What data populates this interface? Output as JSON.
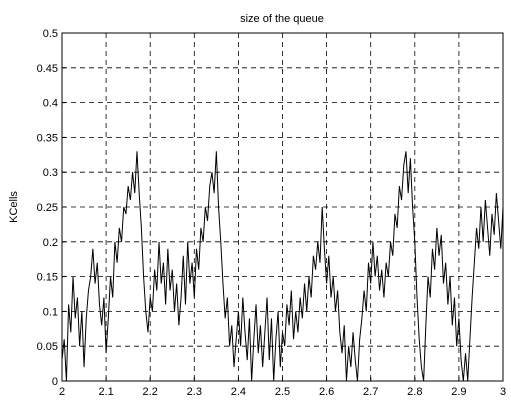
{
  "chart_data": {
    "type": "line",
    "title": "size of the queue",
    "ylabel": "KCells",
    "xlim": [
      2,
      3
    ],
    "ylim": [
      0,
      0.5
    ],
    "xticks": [
      2,
      2.1,
      2.2,
      2.3,
      2.4,
      2.5,
      2.6,
      2.7,
      2.8,
      2.9,
      3
    ],
    "yticks": [
      0,
      0.05,
      0.1,
      0.15,
      0.2,
      0.25,
      0.3,
      0.35,
      0.4,
      0.45,
      0.5
    ],
    "grid": true,
    "x": [
      2,
      2.005,
      2.01,
      2.015,
      2.02,
      2.025,
      2.03,
      2.035,
      2.04,
      2.045,
      2.05,
      2.055,
      2.06,
      2.065,
      2.07,
      2.075,
      2.08,
      2.085,
      2.09,
      2.095,
      2.1,
      2.105,
      2.11,
      2.115,
      2.12,
      2.125,
      2.13,
      2.135,
      2.14,
      2.145,
      2.15,
      2.155,
      2.16,
      2.165,
      2.17,
      2.175,
      2.18,
      2.185,
      2.19,
      2.195,
      2.2,
      2.205,
      2.21,
      2.215,
      2.22,
      2.225,
      2.23,
      2.235,
      2.24,
      2.245,
      2.25,
      2.255,
      2.26,
      2.265,
      2.27,
      2.275,
      2.28,
      2.285,
      2.29,
      2.295,
      2.3,
      2.305,
      2.31,
      2.315,
      2.32,
      2.325,
      2.33,
      2.335,
      2.34,
      2.345,
      2.35,
      2.355,
      2.36,
      2.365,
      2.37,
      2.375,
      2.38,
      2.385,
      2.39,
      2.395,
      2.4,
      2.405,
      2.41,
      2.415,
      2.42,
      2.425,
      2.43,
      2.435,
      2.44,
      2.445,
      2.45,
      2.455,
      2.46,
      2.465,
      2.47,
      2.475,
      2.48,
      2.485,
      2.49,
      2.495,
      2.5,
      2.505,
      2.51,
      2.515,
      2.52,
      2.525,
      2.53,
      2.535,
      2.54,
      2.545,
      2.55,
      2.555,
      2.56,
      2.565,
      2.57,
      2.575,
      2.58,
      2.585,
      2.59,
      2.595,
      2.6,
      2.605,
      2.61,
      2.615,
      2.62,
      2.625,
      2.63,
      2.635,
      2.64,
      2.645,
      2.65,
      2.655,
      2.66,
      2.665,
      2.67,
      2.675,
      2.68,
      2.685,
      2.69,
      2.695,
      2.7,
      2.705,
      2.71,
      2.715,
      2.72,
      2.725,
      2.73,
      2.735,
      2.74,
      2.745,
      2.75,
      2.755,
      2.76,
      2.765,
      2.77,
      2.775,
      2.78,
      2.785,
      2.79,
      2.795,
      2.8,
      2.805,
      2.81,
      2.815,
      2.82,
      2.825,
      2.83,
      2.835,
      2.84,
      2.845,
      2.85,
      2.855,
      2.86,
      2.865,
      2.87,
      2.875,
      2.88,
      2.885,
      2.89,
      2.895,
      2.9,
      2.905,
      2.91,
      2.915,
      2.92,
      2.925,
      2.93,
      2.935,
      2.94,
      2.945,
      2.95,
      2.955,
      2.96,
      2.965,
      2.97,
      2.975,
      2.98,
      2.985,
      2.99,
      2.995,
      3
    ],
    "series": [
      {
        "color": "#000000",
        "values": [
          0.03,
          0.06,
          0.0,
          0.11,
          0.07,
          0.15,
          0.09,
          0.12,
          0.05,
          0.1,
          0.02,
          0.09,
          0.13,
          0.15,
          0.19,
          0.14,
          0.17,
          0.11,
          0.08,
          0.12,
          0.04,
          0.09,
          0.15,
          0.12,
          0.2,
          0.17,
          0.22,
          0.2,
          0.25,
          0.24,
          0.28,
          0.26,
          0.3,
          0.27,
          0.33,
          0.27,
          0.22,
          0.15,
          0.1,
          0.07,
          0.12,
          0.1,
          0.16,
          0.13,
          0.2,
          0.14,
          0.17,
          0.11,
          0.19,
          0.13,
          0.16,
          0.1,
          0.14,
          0.08,
          0.12,
          0.18,
          0.11,
          0.2,
          0.14,
          0.17,
          0.12,
          0.19,
          0.16,
          0.22,
          0.2,
          0.25,
          0.23,
          0.28,
          0.3,
          0.27,
          0.33,
          0.25,
          0.2,
          0.14,
          0.09,
          0.12,
          0.05,
          0.08,
          0.02,
          0.06,
          0.1,
          0.05,
          0.12,
          0.07,
          0.03,
          0.09,
          0.0,
          0.06,
          0.11,
          0.04,
          0.08,
          0.02,
          0.07,
          0.12,
          0.03,
          0.09,
          0.0,
          0.06,
          0.1,
          0.02,
          0.07,
          0.05,
          0.11,
          0.08,
          0.13,
          0.06,
          0.1,
          0.07,
          0.12,
          0.09,
          0.14,
          0.1,
          0.15,
          0.12,
          0.18,
          0.16,
          0.2,
          0.17,
          0.25,
          0.19,
          0.14,
          0.18,
          0.12,
          0.15,
          0.1,
          0.13,
          0.07,
          0.04,
          0.08,
          0.0,
          0.05,
          0.02,
          0.07,
          0.03,
          0.0,
          0.06,
          0.09,
          0.13,
          0.1,
          0.17,
          0.14,
          0.2,
          0.15,
          0.18,
          0.13,
          0.16,
          0.12,
          0.17,
          0.15,
          0.2,
          0.18,
          0.24,
          0.22,
          0.28,
          0.26,
          0.31,
          0.33,
          0.27,
          0.32,
          0.25,
          0.2,
          0.12,
          0.06,
          0.02,
          0.0,
          0.08,
          0.15,
          0.12,
          0.19,
          0.16,
          0.22,
          0.18,
          0.21,
          0.14,
          0.17,
          0.11,
          0.15,
          0.08,
          0.12,
          0.05,
          0.09,
          0.03,
          0.0,
          0.04,
          0.0,
          0.06,
          0.12,
          0.17,
          0.22,
          0.19,
          0.25,
          0.2,
          0.26,
          0.22,
          0.18,
          0.24,
          0.21,
          0.27,
          0.23,
          0.19,
          0.25
        ]
      }
    ]
  }
}
